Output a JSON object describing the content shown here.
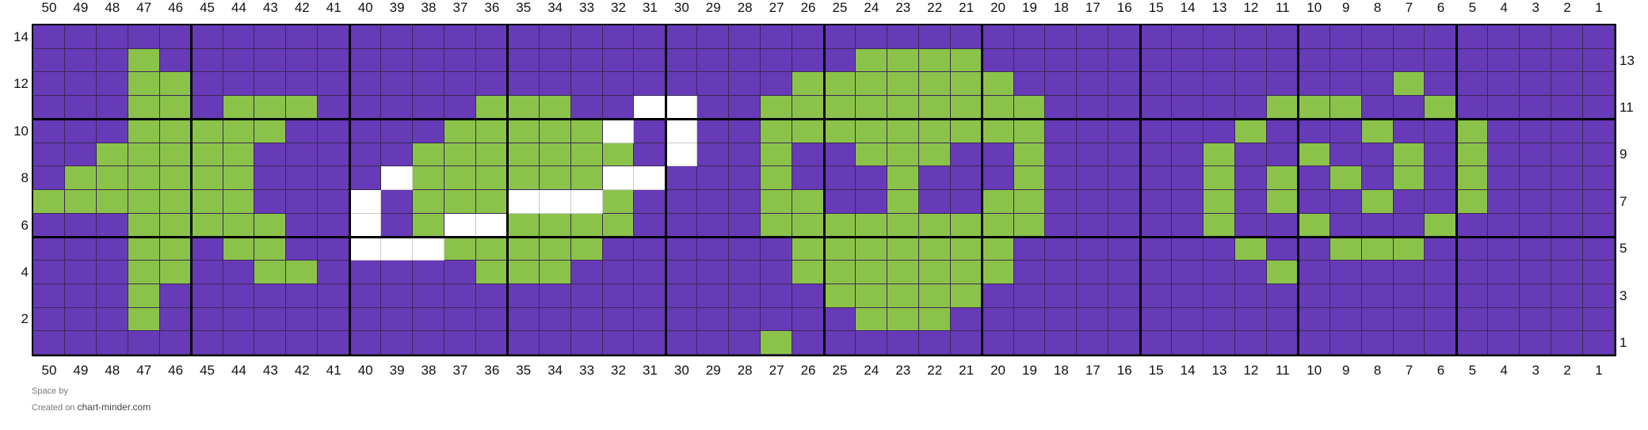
{
  "chart_data": {
    "type": "heatmap",
    "columns": [
      50,
      49,
      48,
      47,
      46,
      45,
      44,
      43,
      42,
      41,
      40,
      39,
      38,
      37,
      36,
      35,
      34,
      33,
      32,
      31,
      30,
      29,
      28,
      27,
      26,
      25,
      24,
      23,
      22,
      21,
      20,
      19,
      18,
      17,
      16,
      15,
      14,
      13,
      12,
      11,
      10,
      9,
      8,
      7,
      6,
      5,
      4,
      3,
      2,
      1
    ],
    "rows": [
      14,
      13,
      12,
      11,
      10,
      9,
      8,
      7,
      6,
      5,
      4,
      3,
      2,
      1
    ],
    "left_row_labels": [
      14,
      12,
      10,
      8,
      6,
      4,
      2
    ],
    "right_row_labels": [
      13,
      11,
      9,
      7,
      5,
      3,
      1
    ],
    "legend": {
      "P": "#673AB7",
      "G": "#8BC34A",
      "W": "#FFFFFF"
    },
    "grid_rows": [
      "PPPPPPPPPPPPPPPPPPPPPPPPPPPPPPPPPPPPPPPPPPPPPPPPPP",
      "PPPGPPPPPPPPPPPPPPPPPPPPPPGGGGPPPPPPPPPPPPPPPPPPPP",
      "PPPGGPPPPPPPPPPPPPPPPPPPGGGGGGGPPPPPPPPPPPPGPPPPPP",
      "PPPGGPGGGPPPPPGGGPPWWPPGGGGGGGGGPPPPPPPGGGPPGPPPPP",
      "PPPGGGGGPPPPPGGGGGWPWPPGGGGGGGGGPPPPPPGPPPGPPGPPPP",
      "PPGGGGGPPPPPGGGGGGGPWPPGPPGGGPPGPPPPPGPPGPPGPGPPPP",
      "PGGGGGGPPPPWGGGGGGWWPPPGPPPGPPPGPPPPPGPGPGPGPGPPPP",
      "GGGGGGGPPPWPGGGWWWGPPPPGGPPGPPGGPPPPPGPGPPGPPGPPPP",
      "PPPGGGGGPPWPGWWGGGGPPPPGGGGGGGGGPPPPPGPPGPPPGPPPPP",
      "PPPGGPGGPPWWWGGGGGPPPPPPGGGGGGGPPPPPPPGPPGGGPPPPPP",
      "PPPGGPPGGPPPPPGGGPPPPPPPGGGGGGGPPPPPPPPGPPPPPPPPPP",
      "PPPGPPPPPPPPPPPPPPPPPPPPPGGGGGPPPPPPPPPPPPPPPPPPPP",
      "PPPGPPPPPPPPPPPPPPPPPPPPPPGGGPPPPPPPPPPPPPPPPPPPPP",
      "PPPPPPPPPPPPPPPPPPPPPPPGPPPPPPPPPPPPPPPPPPPPPPPPPP"
    ]
  },
  "footer": {
    "title": "Space by",
    "created_prefix": "Created on",
    "site": "chart-minder.com"
  }
}
